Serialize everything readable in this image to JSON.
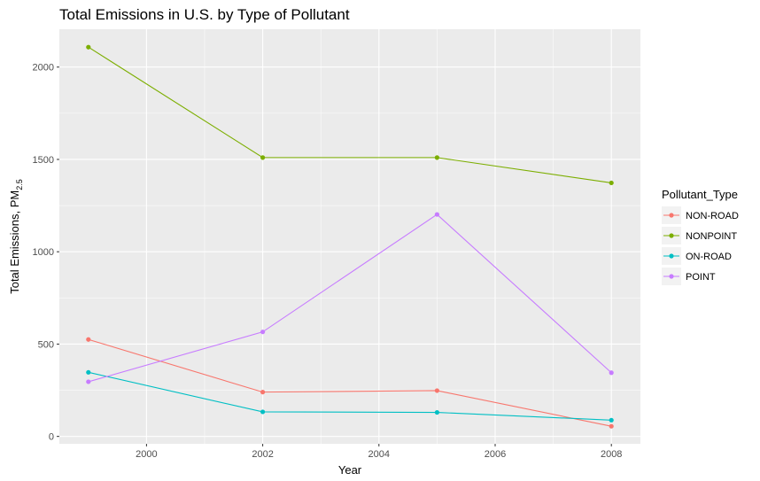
{
  "chart_data": {
    "type": "line",
    "title": "Total Emissions in U.S. by Type of Pollutant",
    "xlabel": "Year",
    "ylabel": {
      "main": "Total Emissions, PM",
      "subscript": "2.5"
    },
    "x": [
      1999,
      2002,
      2005,
      2008
    ],
    "xlim": [
      1998.5,
      2008.5
    ],
    "ylim": [
      -40,
      2205
    ],
    "x_ticks": [
      "2000",
      "2002",
      "2004",
      "2006",
      "2008"
    ],
    "y_ticks": [
      "0",
      "500",
      "1000",
      "1500",
      "2000"
    ],
    "grid": true,
    "legend": {
      "title": "Pollutant_Type",
      "position": "right"
    },
    "series": [
      {
        "name": "NON-ROAD",
        "color": "#F8766D",
        "values": [
          525,
          240,
          248,
          55
        ]
      },
      {
        "name": "NONPOINT",
        "color": "#7CAE00",
        "values": [
          2108,
          1510,
          1510,
          1373
        ]
      },
      {
        "name": "ON-ROAD",
        "color": "#00BFC4",
        "values": [
          347,
          133,
          130,
          88
        ]
      },
      {
        "name": "POINT",
        "color": "#C77CFF",
        "values": [
          296,
          566,
          1202,
          345
        ]
      }
    ]
  }
}
